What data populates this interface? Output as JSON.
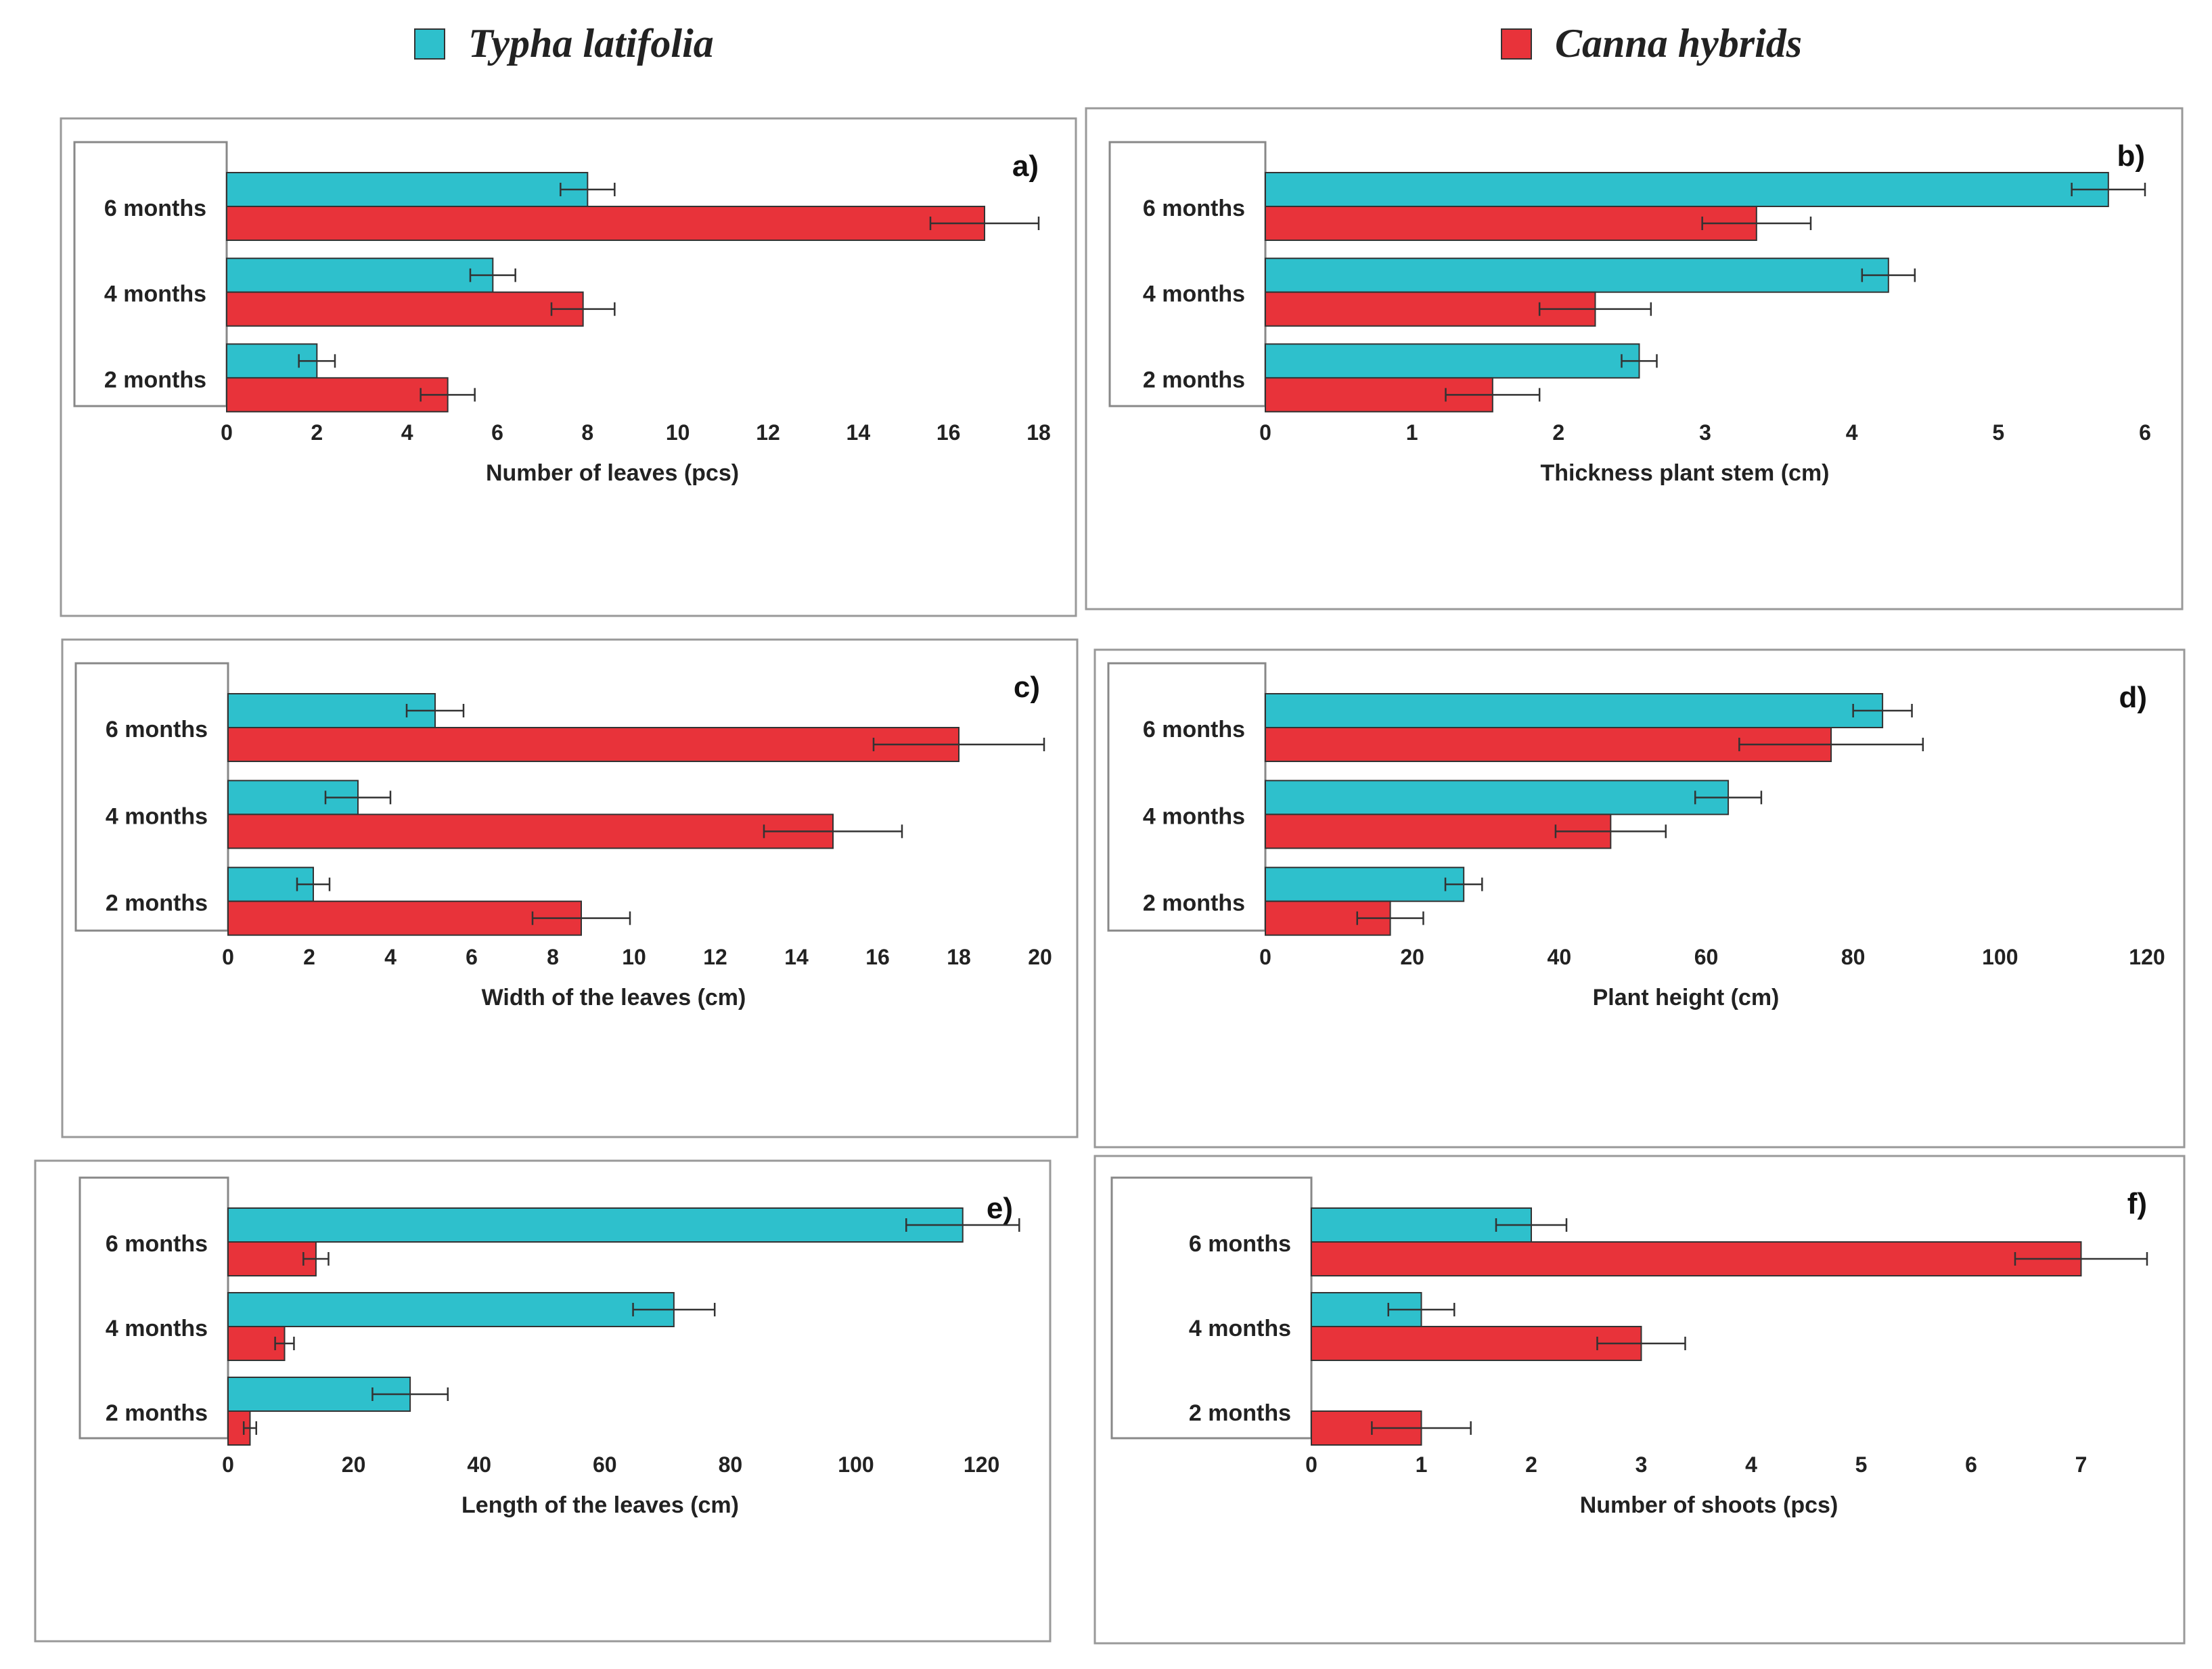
{
  "legend": [
    {
      "name": "Typha latifolia",
      "color": "#2ec0cc"
    },
    {
      "name": "Canna hybrids",
      "color": "#e8333a"
    }
  ],
  "chart_data": [
    {
      "type": "bar",
      "panel_label": "a)",
      "categories": [
        "6 months",
        "4 months",
        "2 months"
      ],
      "xlabel": "Number of leaves (pcs)",
      "xlim": [
        0,
        18
      ],
      "xticks": [
        0,
        2,
        4,
        6,
        8,
        10,
        12,
        14,
        16,
        18
      ],
      "series": [
        {
          "name": "Typha latifolia",
          "values": [
            8,
            5.9,
            2
          ],
          "errors": [
            0.6,
            0.5,
            0.4
          ]
        },
        {
          "name": "Canna hybrids",
          "values": [
            16.8,
            7.9,
            4.9
          ],
          "errors": [
            1.2,
            0.7,
            0.6
          ]
        }
      ]
    },
    {
      "type": "bar",
      "panel_label": "b)",
      "categories": [
        "6 months",
        "4 months",
        "2 months"
      ],
      "xlabel": "Thickness plant stem (cm)",
      "xlim": [
        0,
        6
      ],
      "xticks": [
        0,
        1,
        2,
        3,
        4,
        5,
        6
      ],
      "series": [
        {
          "name": "Typha latifolia",
          "values": [
            5.75,
            4.25,
            2.55
          ],
          "errors": [
            0.25,
            0.18,
            0.12
          ]
        },
        {
          "name": "Canna hybrids",
          "values": [
            3.35,
            2.25,
            1.55
          ],
          "errors": [
            0.37,
            0.38,
            0.32
          ]
        }
      ]
    },
    {
      "type": "bar",
      "panel_label": "c)",
      "categories": [
        "6 months",
        "4 months",
        "2 months"
      ],
      "xlabel": "Width of the leaves (cm)",
      "xlim": [
        0,
        20
      ],
      "xticks": [
        0,
        2,
        4,
        6,
        8,
        10,
        12,
        14,
        16,
        18,
        20
      ],
      "series": [
        {
          "name": "Typha latifolia",
          "values": [
            5.1,
            3.2,
            2.1
          ],
          "errors": [
            0.7,
            0.8,
            0.4
          ]
        },
        {
          "name": "Canna hybrids",
          "values": [
            18,
            14.9,
            8.7
          ],
          "errors": [
            2.1,
            1.7,
            1.2
          ]
        }
      ]
    },
    {
      "type": "bar",
      "panel_label": "d)",
      "categories": [
        "6 months",
        "4 months",
        "2 months"
      ],
      "xlabel": "Plant height (cm)",
      "xlim": [
        0,
        120
      ],
      "xticks": [
        0,
        20,
        40,
        60,
        80,
        100,
        120
      ],
      "series": [
        {
          "name": "Typha latifolia",
          "values": [
            84,
            63,
            27
          ],
          "errors": [
            4,
            4.5,
            2.5
          ]
        },
        {
          "name": "Canna hybrids",
          "values": [
            77,
            47,
            17
          ],
          "errors": [
            12.5,
            7.5,
            4.5
          ]
        }
      ]
    },
    {
      "type": "bar",
      "panel_label": "e)",
      "categories": [
        "6 months",
        "4 months",
        "2 months"
      ],
      "xlabel": "Length of the leaves (cm)",
      "xlim": [
        0,
        125
      ],
      "xticks": [
        0,
        20,
        40,
        60,
        80,
        100,
        120
      ],
      "series": [
        {
          "name": "Typha latifolia",
          "values": [
            117,
            71,
            29
          ],
          "errors": [
            9,
            6.5,
            6
          ]
        },
        {
          "name": "Canna hybrids",
          "values": [
            14,
            9,
            3.5
          ],
          "errors": [
            2,
            1.5,
            1
          ]
        }
      ]
    },
    {
      "type": "bar",
      "panel_label": "f)",
      "categories": [
        "6 months",
        "4 months",
        "2 months"
      ],
      "xlabel": "Number of  shoots (pcs)",
      "xlim": [
        0,
        7.6
      ],
      "xticks": [
        0,
        1,
        2,
        3,
        4,
        5,
        6,
        7
      ],
      "series": [
        {
          "name": "Typha latifolia",
          "values": [
            2,
            1,
            0
          ],
          "errors": [
            0.32,
            0.3,
            0
          ]
        },
        {
          "name": "Canna hybrids",
          "values": [
            7,
            3,
            1
          ],
          "errors": [
            0.6,
            0.4,
            0.45
          ]
        }
      ]
    }
  ]
}
